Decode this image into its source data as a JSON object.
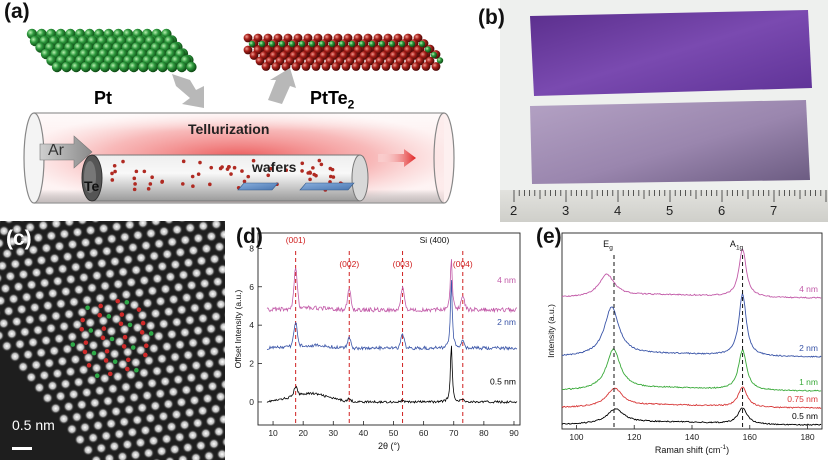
{
  "panel_labels": {
    "a": "(a)",
    "b": "(b)",
    "c": "(c)",
    "d": "(d)",
    "e": "(e)"
  },
  "panel_a": {
    "pt_label": "Pt",
    "ptte2_main": "PtTe",
    "ptte2_sub": "2",
    "process": "Tellurization",
    "gas": "Ar",
    "source": "Te",
    "target": "wafers"
  },
  "panel_b": {
    "ruler_numbers": [
      "2",
      "3",
      "4",
      "5",
      "6",
      "7"
    ]
  },
  "panel_c": {
    "scale_bar": "0.5 nm"
  },
  "colors": {
    "pt_green": "#2e9a3e",
    "te_red": "#a8201a",
    "curve_0_5": "#000000",
    "curve_2": "#3a55a8",
    "curve_4": "#c25aa8",
    "curve_1": "#3aaa3a",
    "curve_0_75": "#d83a3a",
    "peak_label_red": "#d02020",
    "wafer_purple": "#6a3aa0"
  },
  "chart_data": [
    {
      "type": "line",
      "panel": "d",
      "xlabel": "2θ (°)",
      "ylabel": "Offset Intensity (a.u.)",
      "xlim": [
        5,
        92
      ],
      "ylim": [
        -1.2,
        8.8
      ],
      "xticks": [
        10,
        20,
        30,
        40,
        50,
        60,
        70,
        80,
        90
      ],
      "yticks": [
        0,
        2,
        4,
        6,
        8
      ],
      "peaks": [
        {
          "label": "(001)",
          "x": 17.5
        },
        {
          "label": "(002)",
          "x": 35.3
        },
        {
          "label": "(003)",
          "x": 53.0
        },
        {
          "label": "(004)",
          "x": 73.0
        }
      ],
      "si_peak": {
        "label": "Si (400)",
        "x": 69.2
      },
      "series": [
        {
          "name": "0.5 nm",
          "offset": 0,
          "color": "#000000"
        },
        {
          "name": "2 nm",
          "offset": 2.8,
          "color": "#3a55a8"
        },
        {
          "name": "4 nm",
          "offset": 4.8,
          "color": "#c25aa8"
        }
      ]
    },
    {
      "type": "line",
      "panel": "e",
      "xlabel_main": "Raman shift (cm",
      "xlabel_sup": "-1",
      "xlabel_end": ")",
      "ylabel": "Intensity (a.u.)",
      "xlim": [
        95,
        185
      ],
      "xticks": [
        100,
        120,
        140,
        160,
        180
      ],
      "modes": [
        {
          "label_main": "E",
          "label_sub": "g",
          "x": 113
        },
        {
          "label_main": "A",
          "label_sub": "1g",
          "x": 157.5
        }
      ],
      "series": [
        {
          "name": "0.5 nm",
          "color": "#000000"
        },
        {
          "name": "0.75 nm",
          "color": "#d83a3a"
        },
        {
          "name": "1 nm",
          "color": "#3aaa3a"
        },
        {
          "name": "2 nm",
          "color": "#3a55a8"
        },
        {
          "name": "4 nm",
          "color": "#c25aa8"
        }
      ]
    }
  ]
}
